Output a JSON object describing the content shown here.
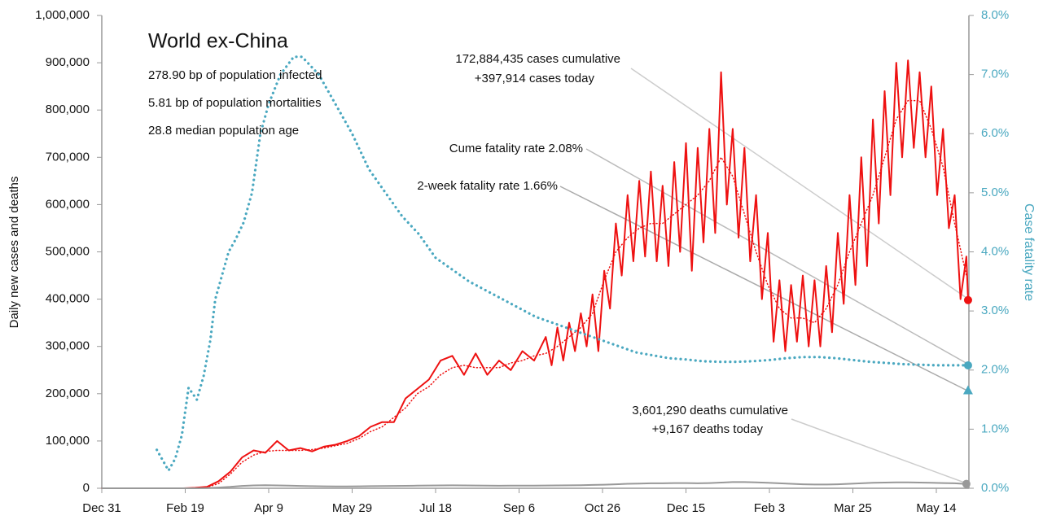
{
  "chart_data": {
    "type": "line",
    "ylabel": "Daily new cases and deaths",
    "y2label": "Case fatality rate",
    "xlim": [
      0,
      520
    ],
    "xticks": [
      {
        "value": 0,
        "label": "Dec 31"
      },
      {
        "value": 50,
        "label": "Feb 19"
      },
      {
        "value": 100,
        "label": "Apr 9"
      },
      {
        "value": 150,
        "label": "May 29"
      },
      {
        "value": 200,
        "label": "Jul 18"
      },
      {
        "value": 250,
        "label": "Sep 6"
      },
      {
        "value": 300,
        "label": "Oct 26"
      },
      {
        "value": 350,
        "label": "Dec 15"
      },
      {
        "value": 400,
        "label": "Feb 3"
      },
      {
        "value": 450,
        "label": "Mar 25"
      },
      {
        "value": 500,
        "label": "May 14"
      }
    ],
    "ylim": [
      0,
      1000000
    ],
    "yticks": [
      0,
      {
        "value": 100000,
        "label": "100,000"
      },
      {
        "value": 200000,
        "label": "200,000"
      },
      {
        "value": 300000,
        "label": "300,000"
      },
      {
        "value": 400000,
        "label": "400,000"
      },
      {
        "value": 500000,
        "label": "500,000"
      },
      {
        "value": 600000,
        "label": "600,000"
      },
      {
        "value": 700000,
        "label": "700,000"
      },
      {
        "value": 800000,
        "label": "800,000"
      },
      {
        "value": 900000,
        "label": "900,000"
      },
      {
        "value": 1000000,
        "label": "1,000,000"
      }
    ],
    "y2lim": [
      0,
      8
    ],
    "y2ticks": [
      {
        "value": 0,
        "label": "0.0%"
      },
      {
        "value": 1,
        "label": "1.0%"
      },
      {
        "value": 2,
        "label": "2.0%"
      },
      {
        "value": 3,
        "label": "3.0%"
      },
      {
        "value": 4,
        "label": "4.0%"
      },
      {
        "value": 5,
        "label": "5.0%"
      },
      {
        "value": 6,
        "label": "6.0%"
      },
      {
        "value": 7,
        "label": "7.0%"
      },
      {
        "value": 8,
        "label": "8.0%"
      }
    ],
    "annotations": [
      "World ex-China",
      "278.90 bp of population infected",
      "5.81 bp of population mortalities",
      "28.8 median population age",
      "172,884,435 cases cumulative",
      "+397,914 cases today",
      "Cume fatality rate 2.08%",
      "2-week fatality rate 1.66%",
      "3,601,290 deaths cumulative",
      "+9,167 deaths today"
    ],
    "series": [
      {
        "color": "#ee1111",
        "style": "dotted",
        "end_marker": "none",
        "x": [
          0,
          7,
          14,
          21,
          28,
          35,
          42,
          49,
          56,
          63,
          70,
          77,
          84,
          91,
          98,
          105,
          112,
          119,
          126,
          133,
          140,
          147,
          154,
          161,
          168,
          175,
          182,
          189,
          196,
          203,
          210,
          217,
          224,
          231,
          238,
          245,
          252,
          259,
          266,
          273,
          280,
          287,
          294,
          301,
          308,
          315,
          322,
          329,
          336,
          343,
          350,
          357,
          364,
          371,
          378,
          385,
          392,
          399,
          406,
          413,
          420,
          427,
          434,
          441,
          448,
          455,
          462,
          469,
          476,
          483,
          490,
          497,
          504,
          511,
          518
        ],
        "values": [
          0,
          0,
          0,
          0,
          0,
          0,
          0,
          0,
          500,
          2000,
          10000,
          30000,
          55000,
          70000,
          78000,
          80000,
          80000,
          80000,
          82000,
          85000,
          90000,
          95000,
          105000,
          120000,
          130000,
          150000,
          170000,
          200000,
          215000,
          240000,
          255000,
          260000,
          255000,
          255000,
          255000,
          265000,
          270000,
          280000,
          285000,
          300000,
          320000,
          340000,
          370000,
          440000,
          500000,
          530000,
          550000,
          560000,
          560000,
          580000,
          600000,
          620000,
          650000,
          700000,
          660000,
          580000,
          500000,
          430000,
          380000,
          360000,
          360000,
          350000,
          380000,
          430000,
          500000,
          560000,
          620000,
          700000,
          780000,
          820000,
          820000,
          760000,
          680000,
          560000,
          450000
        ]
      },
      {
        "color": "#ee1111",
        "style": "solid",
        "end_marker": "circle",
        "x": [
          0,
          7,
          14,
          21,
          28,
          35,
          42,
          49,
          56,
          63,
          70,
          77,
          84,
          91,
          98,
          105,
          112,
          119,
          126,
          133,
          140,
          147,
          154,
          161,
          168,
          175,
          182,
          189,
          196,
          203,
          210,
          217,
          224,
          231,
          238,
          245,
          252,
          259,
          266,
          269.5,
          273,
          276.5,
          280,
          283.5,
          287,
          290.5,
          294,
          297.5,
          301,
          304.5,
          308,
          311.5,
          315,
          318.5,
          322,
          325.5,
          329,
          332.5,
          336,
          339.5,
          343,
          346.5,
          350,
          353.5,
          357,
          360.5,
          364,
          367.5,
          371,
          374.5,
          378,
          381.5,
          385,
          388.5,
          392,
          395.5,
          399,
          402.5,
          406,
          409.5,
          413,
          416.5,
          420,
          423.5,
          427,
          430.5,
          434,
          437.5,
          441,
          444.5,
          448,
          451.5,
          455,
          458.5,
          462,
          465.5,
          469,
          472.5,
          476,
          479.5,
          483,
          486.5,
          490,
          493.5,
          497,
          500.5,
          504,
          507.5,
          511,
          514.5,
          518,
          519
        ],
        "values": [
          0,
          0,
          0,
          0,
          0,
          0,
          0,
          0,
          1000,
          3000,
          15000,
          35000,
          65000,
          80000,
          75000,
          100000,
          80000,
          85000,
          78000,
          88000,
          92000,
          100000,
          110000,
          130000,
          140000,
          140000,
          190000,
          210000,
          230000,
          270000,
          280000,
          240000,
          285000,
          240000,
          270000,
          250000,
          290000,
          270000,
          320000,
          260000,
          340000,
          270000,
          350000,
          290000,
          370000,
          300000,
          410000,
          290000,
          460000,
          380000,
          560000,
          450000,
          620000,
          480000,
          650000,
          490000,
          670000,
          480000,
          640000,
          470000,
          690000,
          500000,
          730000,
          460000,
          720000,
          520000,
          760000,
          540000,
          880000,
          600000,
          760000,
          530000,
          720000,
          480000,
          620000,
          400000,
          540000,
          310000,
          440000,
          290000,
          430000,
          310000,
          450000,
          300000,
          440000,
          300000,
          470000,
          330000,
          540000,
          390000,
          620000,
          430000,
          700000,
          470000,
          780000,
          560000,
          840000,
          620000,
          900000,
          700000,
          905000,
          720000,
          880000,
          700000,
          850000,
          620000,
          760000,
          550000,
          620000,
          400000,
          490000,
          397914
        ]
      },
      {
        "color": "#999999",
        "style": "solid",
        "end_marker": "circle",
        "x": [
          0,
          7,
          14,
          21,
          28,
          35,
          42,
          49,
          56,
          63,
          70,
          77,
          84,
          91,
          98,
          105,
          112,
          119,
          126,
          133,
          140,
          147,
          154,
          161,
          168,
          175,
          182,
          189,
          196,
          203,
          210,
          217,
          224,
          231,
          238,
          245,
          252,
          259,
          266,
          273,
          280,
          287,
          294,
          301,
          308,
          315,
          322,
          329,
          336,
          343,
          350,
          357,
          364,
          371,
          378,
          385,
          392,
          399,
          406,
          413,
          420,
          427,
          434,
          441,
          448,
          455,
          462,
          469,
          476,
          483,
          490,
          497,
          504,
          511,
          518
        ],
        "values": [
          0,
          0,
          0,
          0,
          0,
          0,
          0,
          0,
          0,
          300,
          1500,
          3000,
          5000,
          6000,
          6500,
          6000,
          5500,
          5000,
          4500,
          4200,
          4000,
          4000,
          4200,
          4500,
          4800,
          5000,
          5200,
          5500,
          5800,
          6000,
          6200,
          6000,
          5800,
          5500,
          5400,
          5500,
          5600,
          5700,
          5800,
          6000,
          6200,
          6500,
          7000,
          7500,
          8500,
          9500,
          10000,
          10500,
          10500,
          11000,
          11000,
          10500,
          11000,
          12000,
          13000,
          13000,
          12500,
          11500,
          10500,
          9500,
          8500,
          8000,
          8000,
          8500,
          9500,
          10500,
          11500,
          12000,
          12500,
          12500,
          12000,
          11500,
          11000,
          10500,
          9167
        ]
      },
      {
        "color": "#4aa8c0",
        "style": "dotted",
        "axis": "y2",
        "end_marker": "circle",
        "x": [
          33,
          37,
          40,
          44,
          48,
          52,
          57,
          61,
          65,
          68,
          72,
          76,
          80,
          85,
          90,
          95,
          100,
          107,
          115,
          120,
          130,
          140,
          150,
          160,
          170,
          180,
          190,
          200,
          210,
          220,
          230,
          240,
          250,
          260,
          270,
          280,
          290,
          300,
          310,
          320,
          330,
          340,
          350,
          360,
          370,
          380,
          390,
          400,
          410,
          420,
          430,
          440,
          450,
          460,
          470,
          480,
          490,
          500,
          510,
          519
        ],
        "values": [
          0.65,
          0.45,
          0.3,
          0.5,
          0.9,
          1.7,
          1.5,
          1.9,
          2.5,
          3.2,
          3.6,
          4.0,
          4.2,
          4.5,
          5.0,
          6.0,
          6.5,
          7.0,
          7.3,
          7.3,
          7.0,
          6.5,
          6.0,
          5.4,
          5.0,
          4.6,
          4.3,
          3.9,
          3.7,
          3.5,
          3.35,
          3.2,
          3.05,
          2.9,
          2.8,
          2.7,
          2.6,
          2.5,
          2.4,
          2.3,
          2.25,
          2.2,
          2.18,
          2.15,
          2.14,
          2.14,
          2.15,
          2.17,
          2.2,
          2.22,
          2.22,
          2.2,
          2.17,
          2.14,
          2.12,
          2.1,
          2.09,
          2.08,
          2.08,
          2.08
        ]
      },
      {
        "color": "#4aa8c0",
        "style": "none",
        "axis": "y2",
        "end_marker": "triangle",
        "x": [
          519
        ],
        "values": [
          1.66
        ]
      }
    ]
  }
}
